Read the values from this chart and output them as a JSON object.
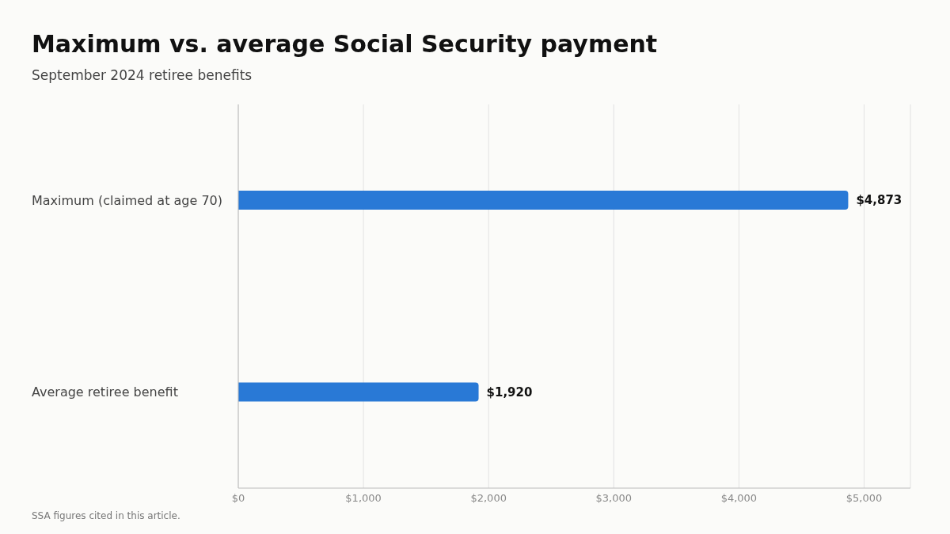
{
  "chart_data": {
    "type": "bar",
    "orientation": "horizontal",
    "title": "Maximum vs. average Social Security payment",
    "subtitle": "September 2024 retiree benefits",
    "categories": [
      "Maximum (claimed at age 70)",
      "Average retiree benefit"
    ],
    "values": [
      4873,
      1920
    ],
    "color": "#2979d6",
    "value_labels": [
      "$4,873",
      "$1,920"
    ],
    "xlim": [
      0,
      5370
    ],
    "xticks": [
      {
        "value": 0,
        "label": "$0"
      },
      {
        "value": 1000,
        "label": "$1,000"
      },
      {
        "value": 2000,
        "label": "$2,000"
      },
      {
        "value": 3000,
        "label": "$3,000"
      },
      {
        "value": 4000,
        "label": "$4,000"
      },
      {
        "value": 5000,
        "label": "$5,000"
      }
    ],
    "grid": "x",
    "annotations": [
      "SSA figures cited in this article."
    ]
  }
}
